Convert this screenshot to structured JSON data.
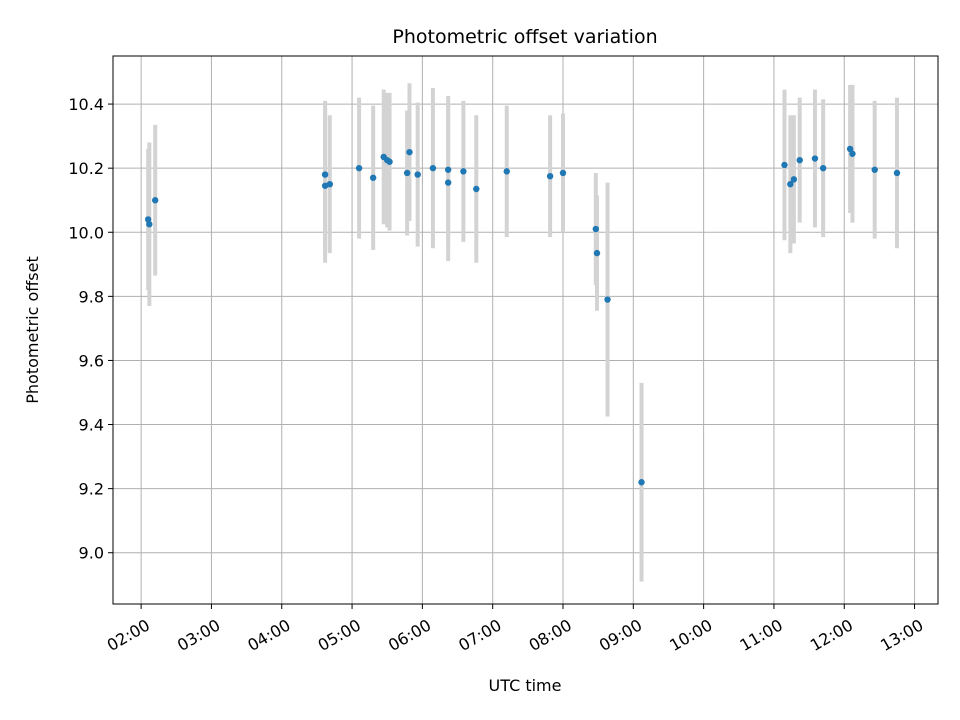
{
  "chart_data": {
    "type": "scatter",
    "title": "Photometric offset variation",
    "xlabel": "UTC time",
    "ylabel": "Photometric offset",
    "x_ticks": [
      "02:00",
      "03:00",
      "04:00",
      "05:00",
      "06:00",
      "07:00",
      "08:00",
      "09:00",
      "10:00",
      "11:00",
      "12:00",
      "13:00"
    ],
    "y_ticks": [
      "9.0",
      "9.2",
      "9.4",
      "9.6",
      "9.8",
      "10.0",
      "10.2",
      "10.4"
    ],
    "xlim": [
      "01:36",
      "13:20"
    ],
    "ylim": [
      8.84,
      10.55
    ],
    "grid": true,
    "point_color": "#1f77b4",
    "errorbar_color": "#d3d3d3",
    "points": [
      {
        "x": "02:06",
        "y": 10.04,
        "err": 0.22
      },
      {
        "x": "02:07",
        "y": 10.025,
        "err": 0.255
      },
      {
        "x": "02:12",
        "y": 10.1,
        "err": 0.235
      },
      {
        "x": "04:37",
        "y": 10.18,
        "err": 0.23
      },
      {
        "x": "04:37",
        "y": 10.145,
        "err": 0.24
      },
      {
        "x": "04:41",
        "y": 10.15,
        "err": 0.215
      },
      {
        "x": "05:06",
        "y": 10.2,
        "err": 0.22
      },
      {
        "x": "05:18",
        "y": 10.17,
        "err": 0.225
      },
      {
        "x": "05:27",
        "y": 10.235,
        "err": 0.21
      },
      {
        "x": "05:30",
        "y": 10.225,
        "err": 0.21
      },
      {
        "x": "05:32",
        "y": 10.22,
        "err": 0.215
      },
      {
        "x": "05:47",
        "y": 10.185,
        "err": 0.195
      },
      {
        "x": "05:49",
        "y": 10.25,
        "err": 0.215
      },
      {
        "x": "05:56",
        "y": 10.18,
        "err": 0.225
      },
      {
        "x": "06:09",
        "y": 10.2,
        "err": 0.25
      },
      {
        "x": "06:22",
        "y": 10.195,
        "err": 0.23
      },
      {
        "x": "06:22",
        "y": 10.155,
        "err": 0.245
      },
      {
        "x": "06:35",
        "y": 10.19,
        "err": 0.22
      },
      {
        "x": "06:46",
        "y": 10.135,
        "err": 0.23
      },
      {
        "x": "07:12",
        "y": 10.19,
        "err": 0.205
      },
      {
        "x": "07:49",
        "y": 10.175,
        "err": 0.19
      },
      {
        "x": "08:00",
        "y": 10.185,
        "err": 0.185
      },
      {
        "x": "08:28",
        "y": 10.01,
        "err": 0.175
      },
      {
        "x": "08:29",
        "y": 9.935,
        "err": 0.18
      },
      {
        "x": "08:38",
        "y": 9.79,
        "err": 0.365
      },
      {
        "x": "09:07",
        "y": 9.22,
        "err": 0.31
      },
      {
        "x": "11:09",
        "y": 10.21,
        "err": 0.235
      },
      {
        "x": "11:14",
        "y": 10.15,
        "err": 0.215
      },
      {
        "x": "11:17",
        "y": 10.165,
        "err": 0.2
      },
      {
        "x": "11:22",
        "y": 10.225,
        "err": 0.195
      },
      {
        "x": "11:35",
        "y": 10.23,
        "err": 0.215
      },
      {
        "x": "11:42",
        "y": 10.2,
        "err": 0.215
      },
      {
        "x": "12:05",
        "y": 10.26,
        "err": 0.2
      },
      {
        "x": "12:07",
        "y": 10.245,
        "err": 0.215
      },
      {
        "x": "12:26",
        "y": 10.195,
        "err": 0.215
      },
      {
        "x": "12:45",
        "y": 10.185,
        "err": 0.235
      }
    ]
  }
}
